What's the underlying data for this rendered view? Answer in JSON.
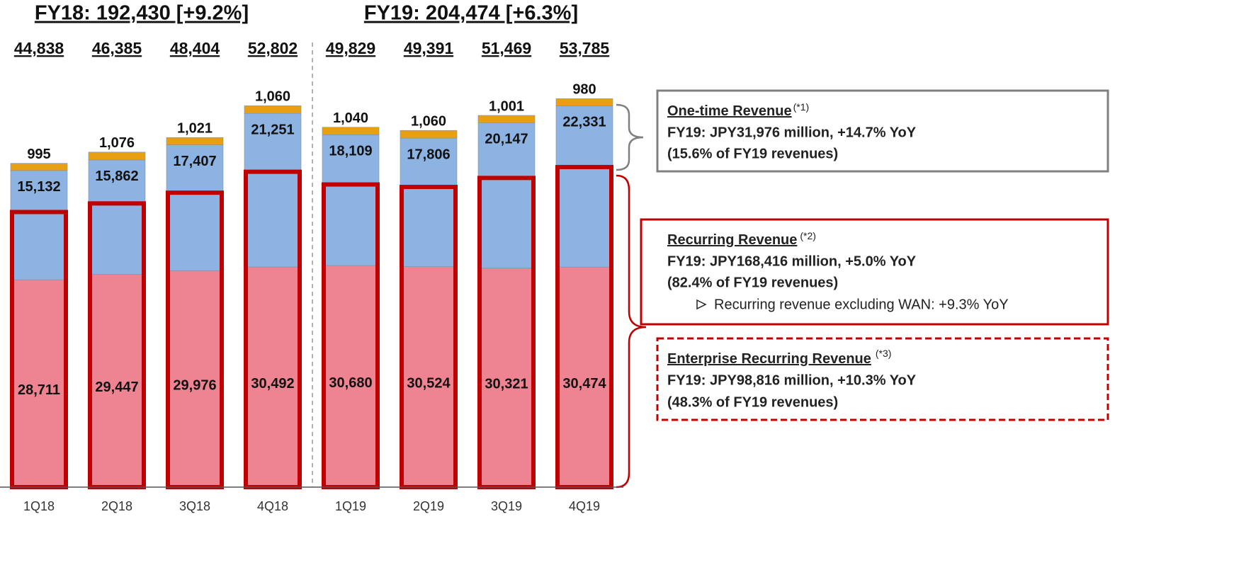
{
  "chart_data": {
    "type": "bar",
    "stacked": true,
    "headers": [
      "FY18: 192,430 [+9.2%]",
      "FY19: 204,474 [+6.3%]"
    ],
    "total_labels": [
      "44,838",
      "46,385",
      "48,404",
      "52,802",
      "49,829",
      "49,391",
      "51,469",
      "53,785"
    ],
    "categories": [
      "1Q18",
      "2Q18",
      "3Q18",
      "4Q18",
      "1Q19",
      "2Q19",
      "3Q19",
      "4Q19"
    ],
    "ylim": [
      0,
      60000
    ],
    "series": [
      {
        "color": "#ee8391",
        "values": [
          28711,
          29447,
          29976,
          30492,
          30680,
          30524,
          30321,
          30474
        ],
        "value_labels": [
          "28,711",
          "29,447",
          "29,976",
          "30,492",
          "30,680",
          "30,524",
          "30,321",
          "30,474"
        ]
      },
      {
        "color": "#8db3e2",
        "values": [
          15132,
          15862,
          17407,
          21251,
          18109,
          17806,
          20147,
          22331
        ],
        "value_labels": [
          "15,132",
          "15,862",
          "17,407",
          "21,251",
          "18,109",
          "17,806",
          "20,147",
          "22,331"
        ]
      },
      {
        "color": "#e8a012",
        "values": [
          995,
          1076,
          1021,
          1060,
          1040,
          1060,
          1001,
          980
        ],
        "value_labels": [
          "995",
          "1,076",
          "1,021",
          "1,060",
          "1,040",
          "1,060",
          "1,001",
          "980"
        ]
      }
    ],
    "annotations": [
      {
        "title": "One-time Revenue",
        "note": "(*1)",
        "lines": [
          "FY19: JPY31,976 million, +14.7% YoY",
          "(15.6% of FY19 revenues)"
        ]
      },
      {
        "title": "Recurring Revenue",
        "note": "(*2)",
        "lines": [
          "FY19: JPY168,416 million, +5.0% YoY",
          "(82.4% of FY19 revenues)"
        ],
        "bullet": "Recurring revenue excluding WAN: +9.3% YoY"
      },
      {
        "title": "Enterprise Recurring Revenue",
        "note": "(*3)",
        "lines": [
          "FY19: JPY98,816 million, +10.3% YoY",
          "(48.3% of FY19 revenues)"
        ]
      }
    ]
  }
}
